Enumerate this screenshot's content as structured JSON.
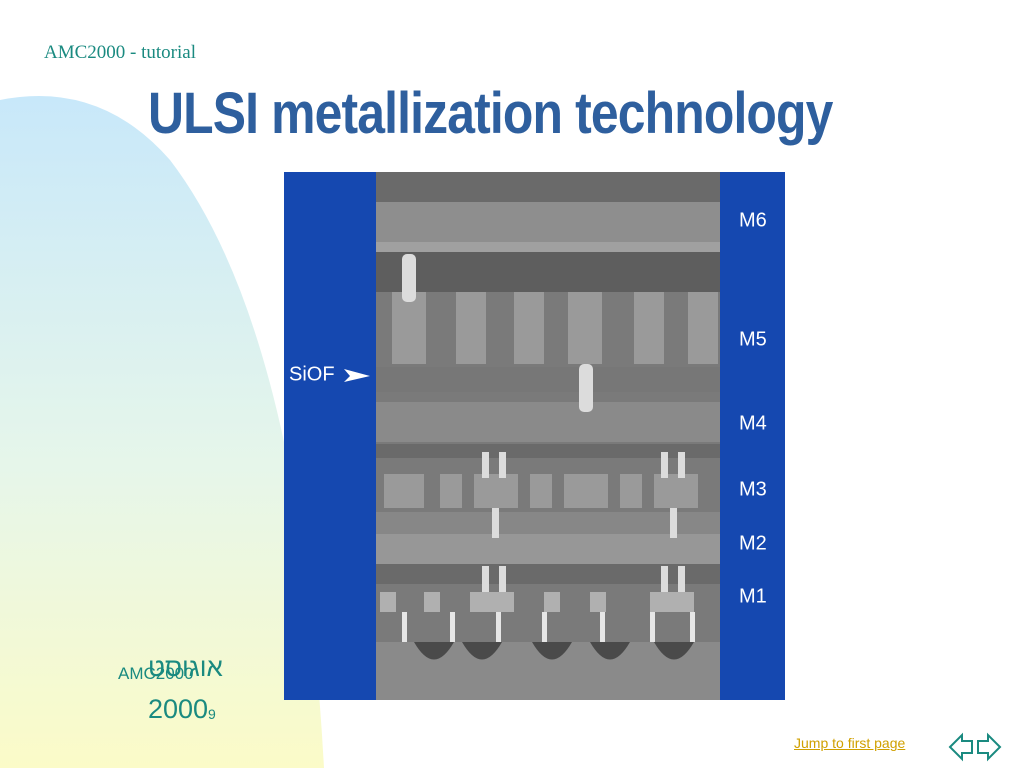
{
  "header": {
    "text": "AMC2000 - tutorial"
  },
  "title": "ULSI metallization technology",
  "figure": {
    "labels": [
      "M6",
      "M5",
      "SiOF",
      "M4",
      "M3",
      "M2",
      "M1"
    ]
  },
  "footer": {
    "organization": "AMC2000",
    "month": "אוגוסט",
    "year": "2000",
    "page_number": "9"
  },
  "navigation": {
    "link": "Jump to first page"
  }
}
